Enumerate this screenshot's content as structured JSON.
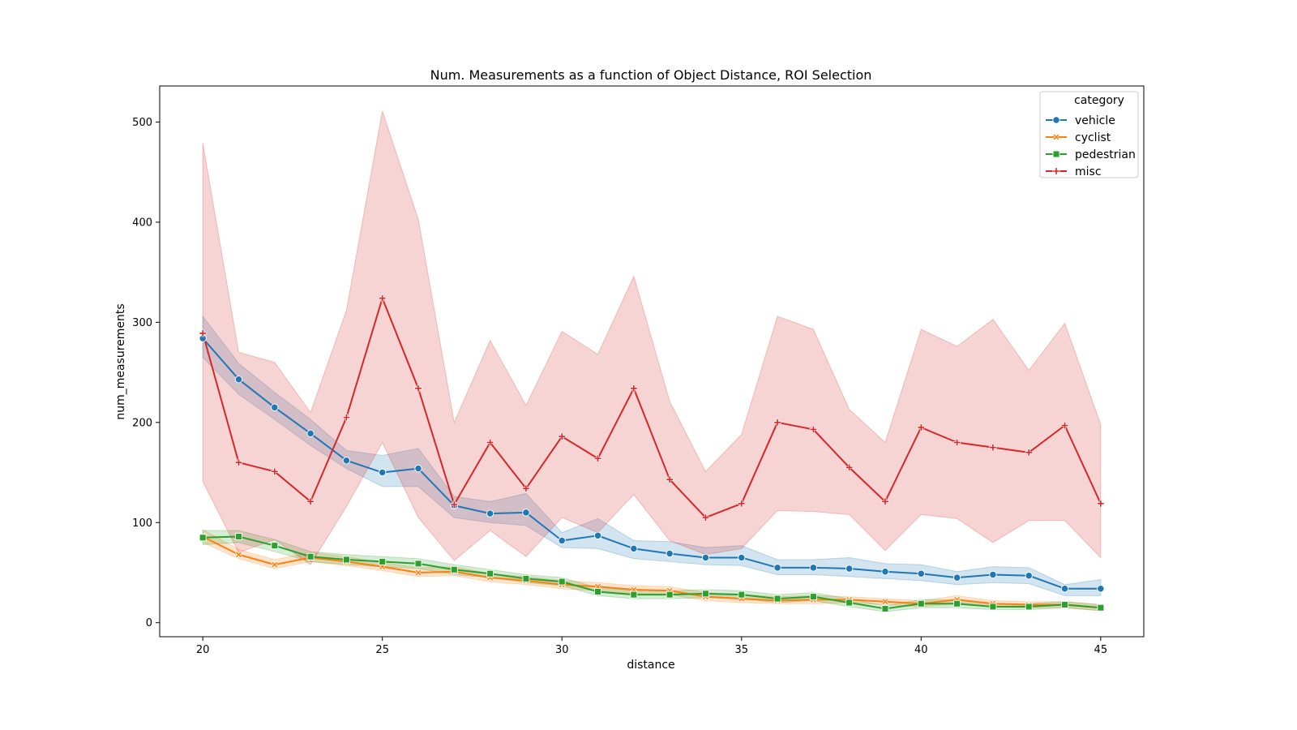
{
  "chart_data": {
    "type": "line",
    "title": "Num. Measurements as a function of Object Distance, ROI Selection",
    "xlabel": "distance",
    "ylabel": "num_measurements",
    "xlim": [
      18.8,
      46.2
    ],
    "ylim": [
      -14,
      536
    ],
    "xticks": [
      20,
      25,
      30,
      35,
      40,
      45
    ],
    "yticks": [
      0,
      100,
      200,
      300,
      400,
      500
    ],
    "grid": false,
    "legend": {
      "title": "category",
      "position": "top-right"
    },
    "x": [
      20,
      21,
      22,
      23,
      24,
      25,
      26,
      27,
      28,
      29,
      30,
      31,
      32,
      33,
      34,
      35,
      36,
      37,
      38,
      39,
      40,
      41,
      42,
      43,
      44,
      45
    ],
    "series": [
      {
        "name": "vehicle",
        "color": "#1f77b4",
        "marker": "circle",
        "values": [
          284,
          243,
          215,
          189,
          162,
          150,
          154,
          117,
          109,
          110,
          82,
          87,
          74,
          69,
          65,
          65,
          55,
          55,
          54,
          51,
          49,
          45,
          48,
          47,
          34,
          34
        ],
        "ci_low": [
          265,
          228,
          203,
          177,
          154,
          136,
          136,
          105,
          100,
          97,
          75,
          74,
          64,
          61,
          58,
          57,
          48,
          48,
          46,
          44,
          42,
          38,
          40,
          39,
          27,
          27
        ],
        "ci_high": [
          306,
          259,
          230,
          203,
          172,
          167,
          174,
          126,
          121,
          129,
          90,
          104,
          82,
          81,
          75,
          77,
          63,
          63,
          65,
          59,
          58,
          51,
          56,
          55,
          38,
          43
        ]
      },
      {
        "name": "cyclist",
        "color": "#ff7f0e",
        "marker": "x",
        "values": [
          86,
          68,
          58,
          65,
          61,
          56,
          50,
          51,
          45,
          42,
          38,
          36,
          33,
          32,
          26,
          24,
          22,
          23,
          23,
          21,
          19,
          23,
          19,
          18,
          18,
          15
        ],
        "ci_low": [
          80,
          64,
          54,
          61,
          57,
          52,
          46,
          47,
          41,
          38,
          34,
          32,
          29,
          28,
          22,
          20,
          19,
          19,
          20,
          18,
          16,
          19,
          16,
          15,
          15,
          12
        ],
        "ci_high": [
          93,
          73,
          63,
          70,
          66,
          60,
          55,
          56,
          49,
          46,
          42,
          40,
          37,
          36,
          30,
          28,
          26,
          27,
          26,
          24,
          22,
          27,
          22,
          21,
          21,
          18
        ]
      },
      {
        "name": "pedestrian",
        "color": "#2ca02c",
        "marker": "square",
        "values": [
          85,
          86,
          77,
          66,
          63,
          61,
          59,
          53,
          49,
          44,
          41,
          31,
          28,
          28,
          29,
          28,
          24,
          26,
          20,
          14,
          19,
          19,
          16,
          16,
          18,
          15
        ],
        "ci_low": [
          78,
          80,
          71,
          61,
          58,
          56,
          54,
          48,
          45,
          40,
          37,
          27,
          24,
          24,
          25,
          24,
          20,
          22,
          16,
          11,
          15,
          15,
          13,
          13,
          15,
          12
        ],
        "ci_high": [
          92,
          92,
          83,
          71,
          68,
          66,
          64,
          58,
          53,
          48,
          45,
          35,
          32,
          32,
          33,
          32,
          28,
          30,
          24,
          17,
          23,
          23,
          19,
          19,
          21,
          18
        ]
      },
      {
        "name": "misc",
        "color": "#d62728",
        "marker": "plus",
        "values": [
          289,
          160,
          151,
          121,
          205,
          324,
          234,
          118,
          180,
          134,
          186,
          164,
          234,
          143,
          105,
          119,
          200,
          193,
          155,
          121,
          195,
          180,
          175,
          170,
          197,
          119
        ],
        "ci_low": [
          141,
          70,
          83,
          58,
          116,
          180,
          105,
          62,
          92,
          66,
          105,
          90,
          128,
          82,
          68,
          74,
          112,
          111,
          108,
          72,
          108,
          104,
          80,
          102,
          102,
          65
        ],
        "ci_high": [
          479,
          270,
          260,
          210,
          312,
          511,
          403,
          200,
          282,
          217,
          291,
          268,
          346,
          221,
          151,
          188,
          306,
          293,
          213,
          180,
          293,
          276,
          303,
          252,
          299,
          198
        ]
      }
    ]
  }
}
